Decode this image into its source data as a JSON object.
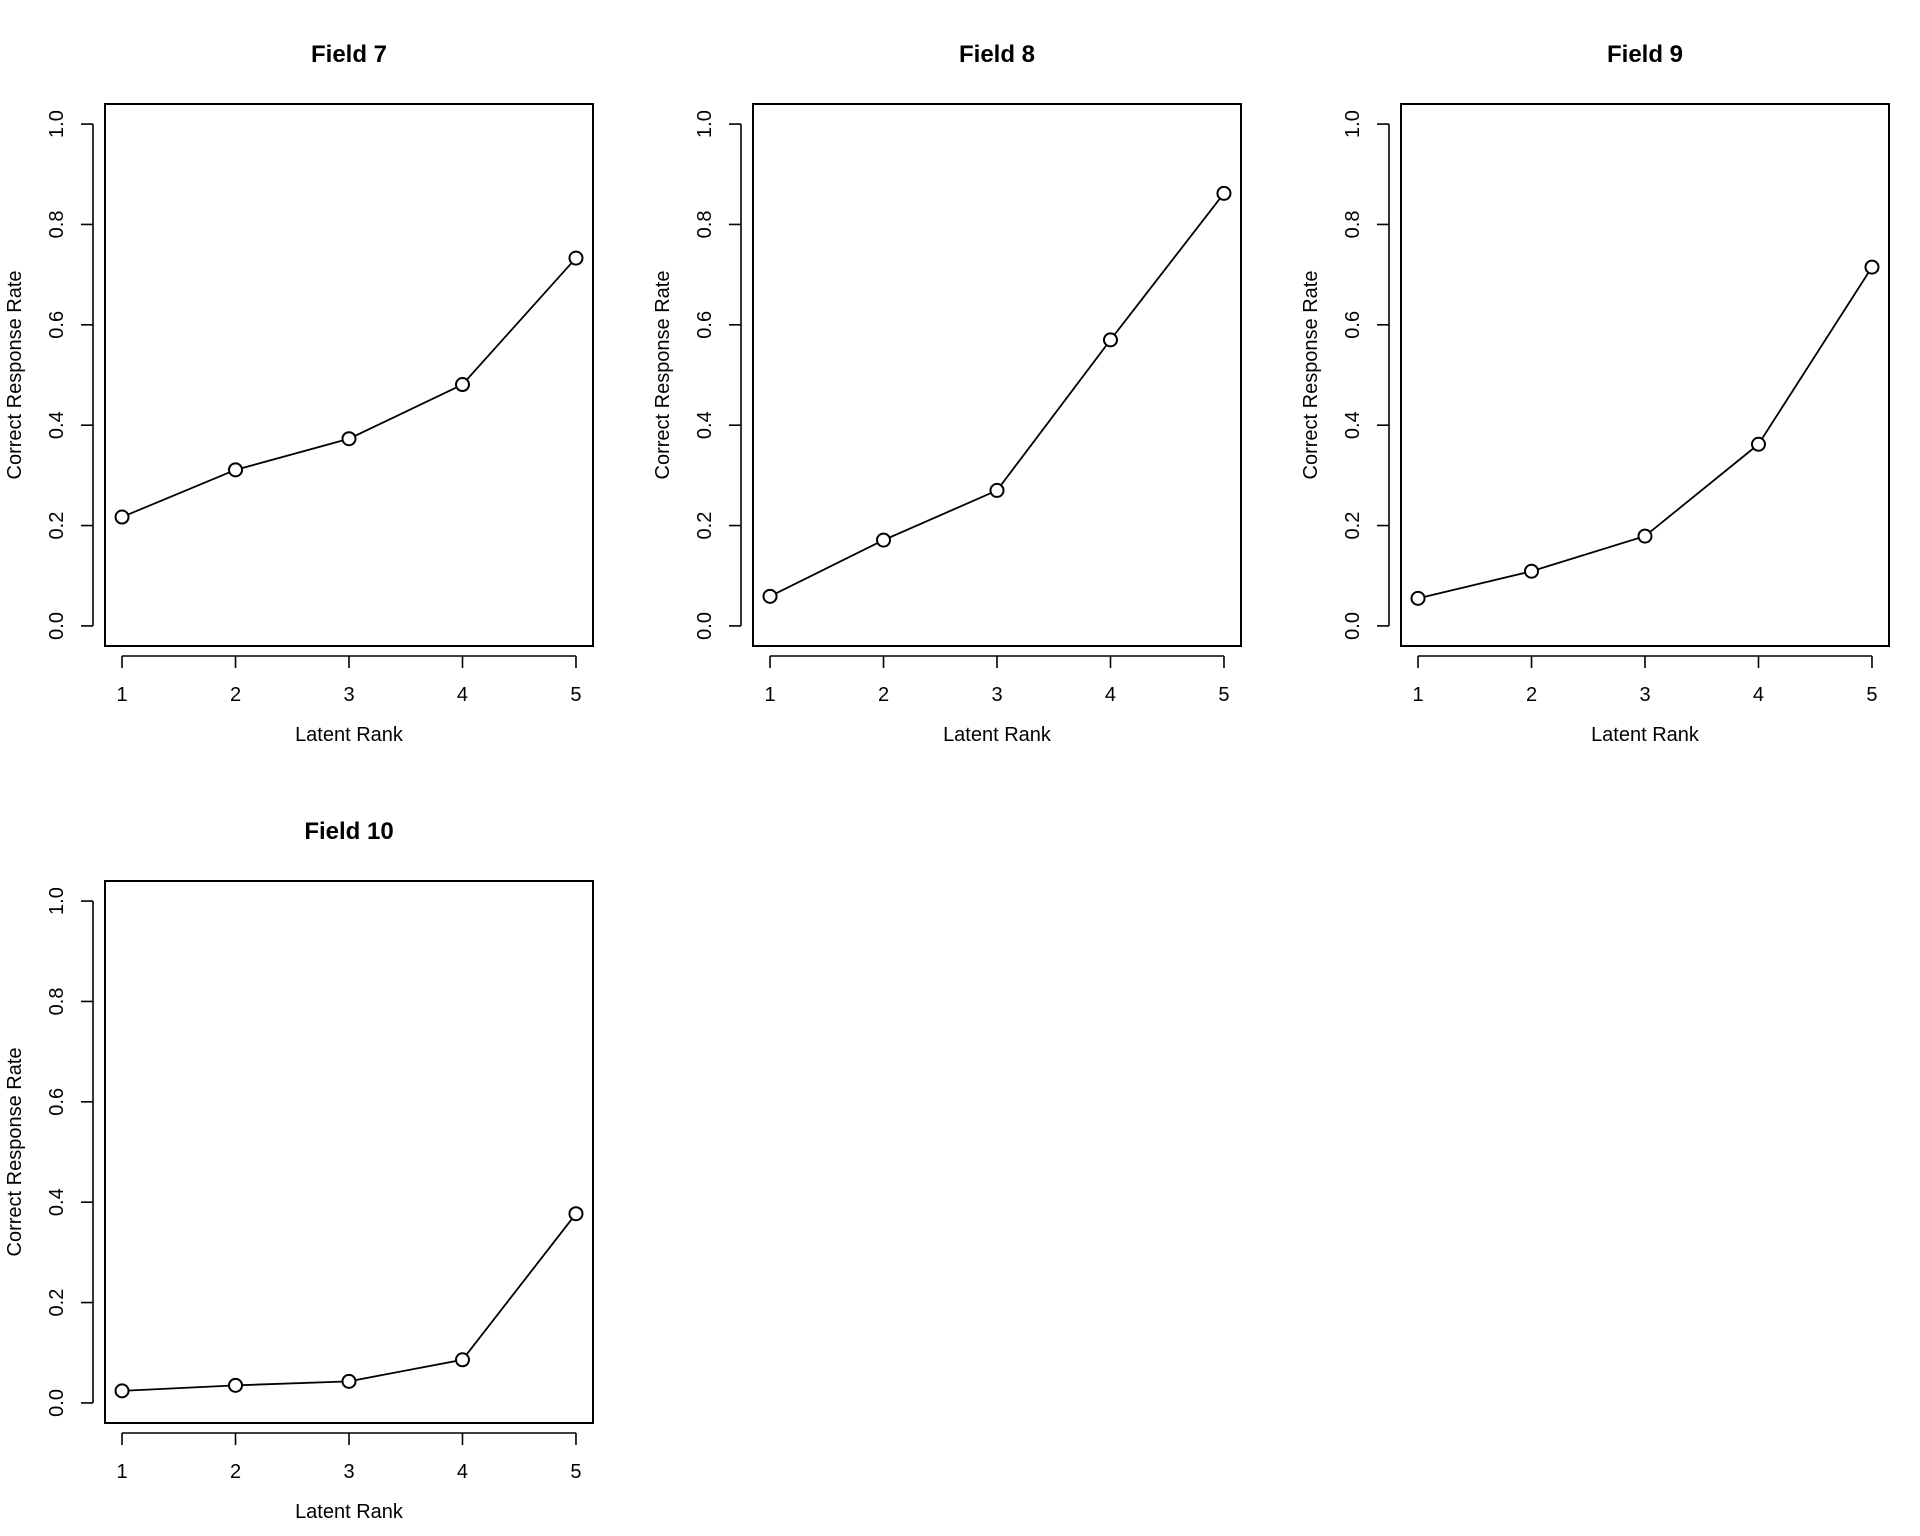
{
  "chart_data": [
    {
      "type": "line",
      "title": "Field 7",
      "xlabel": "Latent Rank",
      "ylabel": "Correct Response Rate",
      "x": [
        1,
        2,
        3,
        4,
        5
      ],
      "values": [
        0.217,
        0.311,
        0.373,
        0.481,
        0.733
      ],
      "xlim": [
        0.85,
        5.15
      ],
      "ylim": [
        -0.04,
        1.04
      ],
      "x_ticks": [
        1,
        2,
        3,
        4,
        5
      ],
      "y_ticks": [
        "0.0",
        "0.2",
        "0.4",
        "0.6",
        "0.8",
        "1.0"
      ],
      "grid": false,
      "marker": "open-circle"
    },
    {
      "type": "line",
      "title": "Field 8",
      "xlabel": "Latent Rank",
      "ylabel": "Correct Response Rate",
      "x": [
        1,
        2,
        3,
        4,
        5
      ],
      "values": [
        0.059,
        0.171,
        0.27,
        0.57,
        0.862
      ],
      "xlim": [
        0.85,
        5.15
      ],
      "ylim": [
        -0.04,
        1.04
      ],
      "x_ticks": [
        1,
        2,
        3,
        4,
        5
      ],
      "y_ticks": [
        "0.0",
        "0.2",
        "0.4",
        "0.6",
        "0.8",
        "1.0"
      ],
      "grid": false,
      "marker": "open-circle"
    },
    {
      "type": "line",
      "title": "Field 9",
      "xlabel": "Latent Rank",
      "ylabel": "Correct Response Rate",
      "x": [
        1,
        2,
        3,
        4,
        5
      ],
      "values": [
        0.055,
        0.109,
        0.179,
        0.362,
        0.715
      ],
      "xlim": [
        0.85,
        5.15
      ],
      "ylim": [
        -0.04,
        1.04
      ],
      "x_ticks": [
        1,
        2,
        3,
        4,
        5
      ],
      "y_ticks": [
        "0.0",
        "0.2",
        "0.4",
        "0.6",
        "0.8",
        "1.0"
      ],
      "grid": false,
      "marker": "open-circle"
    },
    {
      "type": "line",
      "title": "Field 10",
      "xlabel": "Latent Rank",
      "ylabel": "Correct Response Rate",
      "x": [
        1,
        2,
        3,
        4,
        5
      ],
      "values": [
        0.024,
        0.035,
        0.043,
        0.086,
        0.377
      ],
      "xlim": [
        0.85,
        5.15
      ],
      "ylim": [
        -0.04,
        1.04
      ],
      "x_ticks": [
        1,
        2,
        3,
        4,
        5
      ],
      "y_ticks": [
        "0.0",
        "0.2",
        "0.4",
        "0.6",
        "0.8",
        "1.0"
      ],
      "grid": false,
      "marker": "open-circle"
    }
  ]
}
